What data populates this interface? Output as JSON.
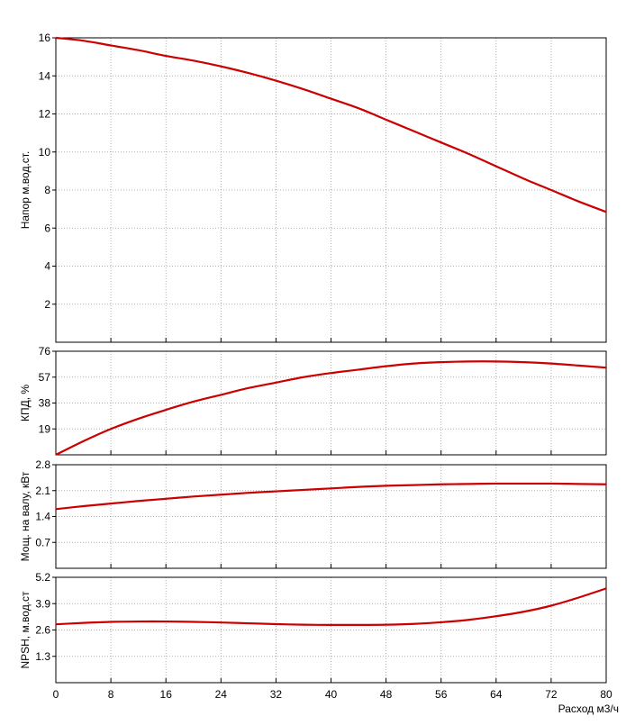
{
  "colors": {
    "curve": "#cc0000",
    "grid": "#9a9a9a",
    "frame": "#000000",
    "background": "#ffffff"
  },
  "x_axis": {
    "label": "Расход м3/ч",
    "range": [
      0,
      80
    ],
    "ticks": [
      0,
      8,
      16,
      24,
      32,
      40,
      48,
      56,
      64,
      72,
      80
    ]
  },
  "chart_data": [
    {
      "type": "line",
      "title": "",
      "xlabel": "",
      "ylabel": "Напор м.вод.ст.",
      "xlim": [
        0,
        80
      ],
      "ylim": [
        0,
        16
      ],
      "y_ticks": [
        2,
        4,
        6,
        8,
        10,
        12,
        14,
        16
      ],
      "grid": true,
      "series": [
        {
          "x": [
            0,
            4,
            8,
            12,
            16,
            20,
            24,
            28,
            32,
            36,
            40,
            44,
            48,
            52,
            56,
            60,
            64,
            68,
            72,
            76,
            80
          ],
          "y": [
            16.0,
            15.85,
            15.6,
            15.35,
            15.05,
            14.8,
            14.5,
            14.15,
            13.75,
            13.3,
            12.8,
            12.3,
            11.7,
            11.1,
            10.5,
            9.9,
            9.25,
            8.6,
            8.0,
            7.4,
            6.85
          ]
        }
      ]
    },
    {
      "type": "line",
      "title": "",
      "xlabel": "",
      "ylabel": "КПД, %",
      "xlim": [
        0,
        80
      ],
      "ylim": [
        0,
        76
      ],
      "y_ticks": [
        19,
        38,
        57,
        76
      ],
      "grid": true,
      "series": [
        {
          "x": [
            0,
            4,
            8,
            12,
            16,
            20,
            24,
            28,
            32,
            36,
            40,
            44,
            48,
            52,
            56,
            60,
            64,
            68,
            72,
            76,
            80
          ],
          "y": [
            0,
            10,
            19,
            26.5,
            33,
            39,
            44,
            49,
            53,
            57,
            60,
            62.5,
            65,
            67,
            68,
            68.5,
            68.5,
            68,
            67,
            65.5,
            64
          ]
        }
      ]
    },
    {
      "type": "line",
      "title": "",
      "xlabel": "",
      "ylabel": "Мощ. на валу, кВт",
      "xlim": [
        0,
        80
      ],
      "ylim": [
        0,
        2.8
      ],
      "y_ticks": [
        0.7,
        1.4,
        2.1,
        2.8
      ],
      "grid": true,
      "series": [
        {
          "x": [
            0,
            4,
            8,
            12,
            16,
            20,
            24,
            28,
            32,
            36,
            40,
            44,
            48,
            52,
            56,
            60,
            64,
            68,
            72,
            76,
            80
          ],
          "y": [
            1.6,
            1.68,
            1.75,
            1.82,
            1.88,
            1.94,
            1.99,
            2.04,
            2.08,
            2.12,
            2.16,
            2.2,
            2.23,
            2.25,
            2.27,
            2.28,
            2.29,
            2.29,
            2.29,
            2.28,
            2.27
          ]
        }
      ]
    },
    {
      "type": "line",
      "title": "",
      "xlabel": "Расход м3/ч",
      "ylabel": "NPSH, м.вод.ст",
      "xlim": [
        0,
        80
      ],
      "ylim": [
        0,
        5.2
      ],
      "y_ticks": [
        1.3,
        2.6,
        3.9,
        5.2
      ],
      "grid": true,
      "series": [
        {
          "x": [
            0,
            4,
            8,
            12,
            16,
            20,
            24,
            28,
            32,
            36,
            40,
            44,
            48,
            52,
            56,
            60,
            64,
            68,
            72,
            76,
            80
          ],
          "y": [
            2.88,
            2.95,
            3.0,
            3.02,
            3.02,
            3.0,
            2.97,
            2.93,
            2.89,
            2.86,
            2.85,
            2.85,
            2.86,
            2.9,
            2.98,
            3.1,
            3.28,
            3.5,
            3.8,
            4.2,
            4.65
          ]
        }
      ]
    }
  ]
}
